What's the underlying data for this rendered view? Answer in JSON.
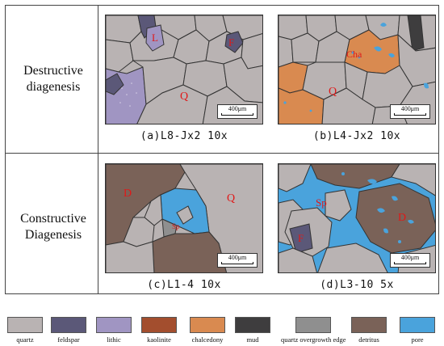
{
  "rows": [
    {
      "label_line1": "Destructive",
      "label_line2": "diagenesis"
    },
    {
      "label_line1": "Constructive",
      "label_line2": "Diagenesis"
    }
  ],
  "panels": [
    {
      "caption": "(a)L8-Jx2 10x",
      "scale": "400μm",
      "grain_labels": [
        "L",
        "F",
        "Q"
      ]
    },
    {
      "caption": "(b)L4-Jx2 10x",
      "scale": "400μm",
      "grain_labels": [
        "Cha",
        "Q"
      ]
    },
    {
      "caption": "(c)L1-4 10x",
      "scale": "400μm",
      "grain_labels": [
        "D",
        "Q",
        "Sp"
      ]
    },
    {
      "caption": "(d)L3-10 5x",
      "scale": "400μm",
      "grain_labels": [
        "Sp",
        "F",
        "D"
      ]
    }
  ],
  "legend": [
    {
      "label": "quartz",
      "color": "#b9b3b3"
    },
    {
      "label": "feldspar",
      "color": "#5b5878"
    },
    {
      "label": "lithic",
      "color": "#a095c2"
    },
    {
      "label": "kaolinite",
      "color": "#a34e2e"
    },
    {
      "label": "chalcedony",
      "color": "#d98a50"
    },
    {
      "label": "mud",
      "color": "#3e3d3e"
    },
    {
      "label": "quartz overgrowth edge",
      "color": "#8f8f8f"
    },
    {
      "label": "detritus",
      "color": "#7a6258"
    },
    {
      "label": "pore",
      "color": "#4aa3dc"
    }
  ]
}
